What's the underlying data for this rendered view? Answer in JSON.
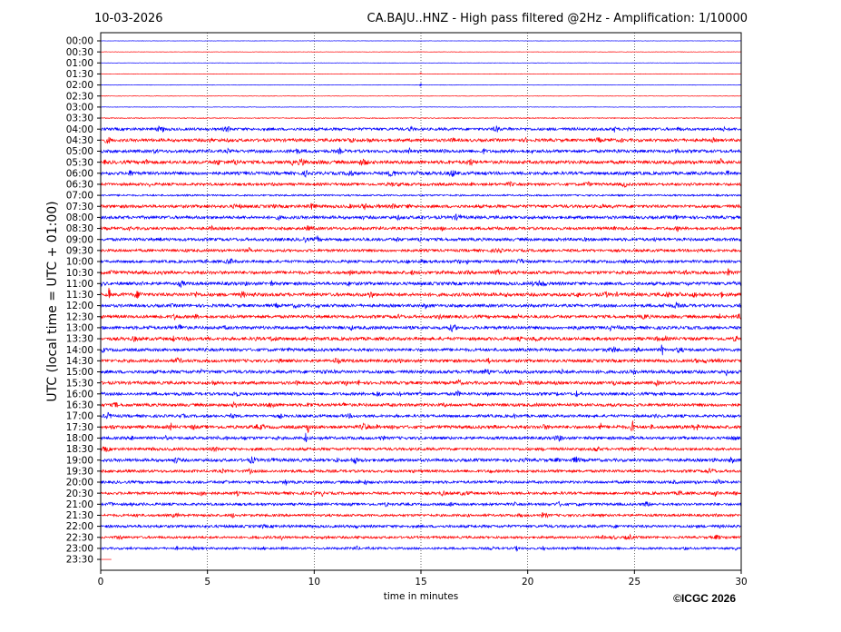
{
  "chart_data": {
    "type": "line",
    "date": "10-03-2026",
    "title": "CA.BAJU..HNZ - High pass filtered @2Hz - Amplification: 1/10000",
    "ylabel": "UTC (local time = UTC + 01:00)",
    "xlabel": "time in minutes",
    "xlim": [
      0,
      30
    ],
    "x_ticks": [
      0,
      5,
      10,
      15,
      20,
      25,
      30
    ],
    "grid": "vertical dotted lines at x ticks",
    "row_labels": [
      "00:00",
      "00:30",
      "01:00",
      "01:30",
      "02:00",
      "02:30",
      "03:00",
      "03:30",
      "04:00",
      "04:30",
      "05:00",
      "05:30",
      "06:00",
      "06:30",
      "07:00",
      "07:30",
      "08:00",
      "08:30",
      "09:00",
      "09:30",
      "10:00",
      "10:30",
      "11:00",
      "11:30",
      "12:00",
      "12:30",
      "13:00",
      "13:30",
      "14:00",
      "14:30",
      "15:00",
      "15:30",
      "16:00",
      "16:30",
      "17:00",
      "17:30",
      "18:00",
      "18:30",
      "19:00",
      "19:30",
      "20:00",
      "20:30",
      "21:00",
      "21:30",
      "22:00",
      "22:30",
      "23:00",
      "23:30"
    ],
    "trace_colors": [
      "#0000ff",
      "#ff0000"
    ],
    "noise_levels": [
      0.2,
      0.2,
      0.2,
      0.25,
      0.25,
      0.25,
      0.3,
      0.5,
      1.6,
      1.8,
      1.8,
      2.0,
      1.9,
      1.6,
      1.0,
      1.8,
      1.8,
      1.7,
      1.8,
      1.6,
      1.6,
      1.9,
      1.9,
      2.0,
      1.8,
      1.8,
      1.9,
      1.9,
      1.8,
      1.8,
      1.9,
      1.8,
      1.7,
      1.8,
      1.6,
      1.9,
      1.7,
      1.6,
      1.8,
      1.6,
      1.6,
      1.6,
      1.5,
      1.5,
      1.6,
      1.4,
      1.3,
      0.0
    ],
    "events": [
      {
        "row": "01:30",
        "minute": 15.0,
        "amplitude": 2
      },
      {
        "row": "02:00",
        "minute": 15.0,
        "amplitude": 2
      },
      {
        "row": "04:00",
        "minute": 22.3,
        "amplitude": 3
      },
      {
        "row": "04:30",
        "minute": 13.5,
        "amplitude": 3
      },
      {
        "row": "05:30",
        "minute": 17.2,
        "amplitude": 3
      },
      {
        "row": "06:00",
        "minute": 8.3,
        "amplitude": 3
      },
      {
        "row": "06:00",
        "minute": 26.5,
        "amplitude": 3
      },
      {
        "row": "08:00",
        "minute": 12.3,
        "amplitude": 3
      },
      {
        "row": "09:00",
        "minute": 21.5,
        "amplitude": 5
      },
      {
        "row": "10:00",
        "minute": 25.9,
        "amplitude": 4
      },
      {
        "row": "10:30",
        "minute": 27.3,
        "amplitude": 4
      },
      {
        "row": "11:00",
        "minute": 8.0,
        "amplitude": 6
      },
      {
        "row": "11:00",
        "minute": 30.0,
        "amplitude": 4
      },
      {
        "row": "11:30",
        "minute": 0.4,
        "amplitude": 11
      },
      {
        "row": "11:30",
        "minute": 17.3,
        "amplitude": 3
      },
      {
        "row": "12:00",
        "minute": 20.0,
        "amplitude": 4
      },
      {
        "row": "12:30",
        "minute": 29.0,
        "amplitude": 4
      },
      {
        "row": "13:30",
        "minute": 3.2,
        "amplitude": 4
      },
      {
        "row": "13:30",
        "minute": 8.0,
        "amplitude": 6
      },
      {
        "row": "14:00",
        "minute": 26.3,
        "amplitude": 10
      },
      {
        "row": "14:30",
        "minute": 11.0,
        "amplitude": 6
      },
      {
        "row": "15:00",
        "minute": 4.7,
        "amplitude": 4
      },
      {
        "row": "15:00",
        "minute": 25.0,
        "amplitude": 7
      },
      {
        "row": "15:00",
        "minute": 29.3,
        "amplitude": 6
      },
      {
        "row": "15:30",
        "minute": 11.5,
        "amplitude": 6
      },
      {
        "row": "15:30",
        "minute": 12.1,
        "amplitude": 5
      },
      {
        "row": "16:00",
        "minute": 22.3,
        "amplitude": 6
      },
      {
        "row": "16:30",
        "minute": 19.6,
        "amplitude": 3
      },
      {
        "row": "17:30",
        "minute": 3.3,
        "amplitude": 6
      },
      {
        "row": "17:30",
        "minute": 9.7,
        "amplitude": 12
      },
      {
        "row": "17:30",
        "minute": 23.4,
        "amplitude": 8
      },
      {
        "row": "17:30",
        "minute": 24.9,
        "amplitude": 12
      },
      {
        "row": "18:00",
        "minute": 1.5,
        "amplitude": 9
      },
      {
        "row": "18:00",
        "minute": 9.6,
        "amplitude": 8
      },
      {
        "row": "19:00",
        "minute": 26.8,
        "amplitude": 4
      },
      {
        "row": "19:00",
        "minute": 9.3,
        "amplitude": 3
      }
    ]
  },
  "copyright": "©ICGC 2026"
}
